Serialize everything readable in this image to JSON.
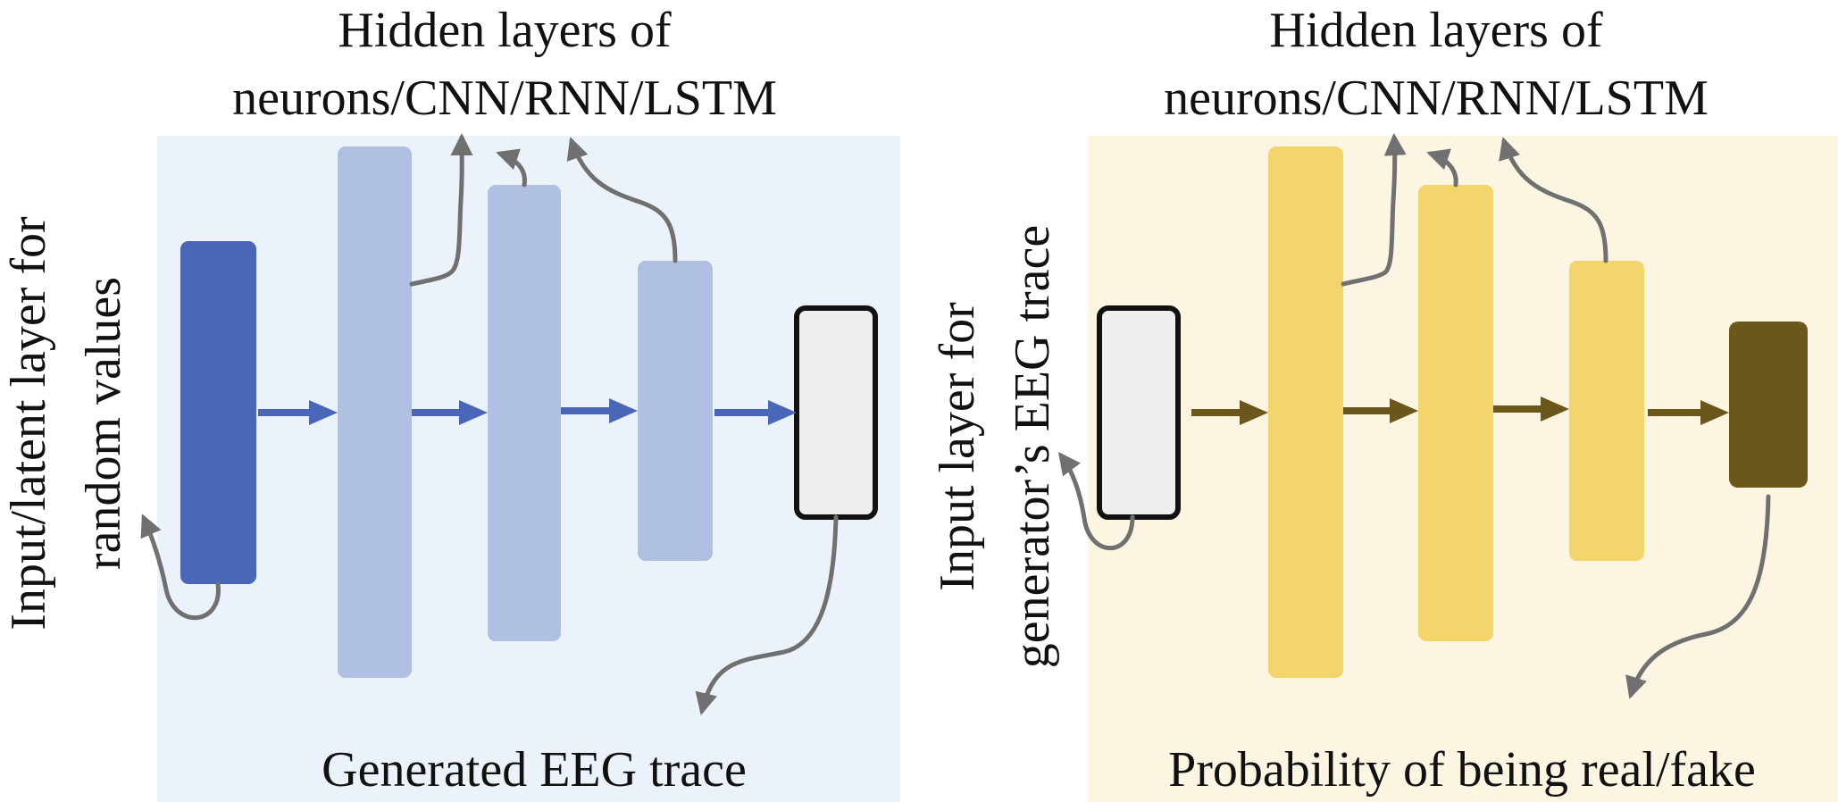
{
  "generator": {
    "hidden_label_line1": "Hidden layers of",
    "hidden_label_line2": "neurons/CNN/RNN/LSTM",
    "input_label_line1": "Input/latent layer for",
    "input_label_line2": "random values",
    "output_label": "Generated EEG trace"
  },
  "discriminator": {
    "hidden_label_line1": "Hidden layers of",
    "hidden_label_line2": "neurons/CNN/RNN/LSTM",
    "input_label_line1": "Input layer for",
    "input_label_line2": "generator’s EEG trace",
    "output_label": "Probability of being real/fake"
  },
  "colors": {
    "gen_panel_bg": "#ECF2FA",
    "gen_input_layer": "#4966B8",
    "gen_hidden_layer": "#AFC0E2",
    "gen_arrow": "#4966B8",
    "disc_panel_bg": "#FCF5E2",
    "disc_hidden_layer": "#F4D56C",
    "disc_output_layer": "#6B561C",
    "disc_arrow": "#6B561C",
    "io_box_fill": "#EFEFEF",
    "io_box_stroke": "#111111",
    "pointer_curve": "#707070"
  }
}
